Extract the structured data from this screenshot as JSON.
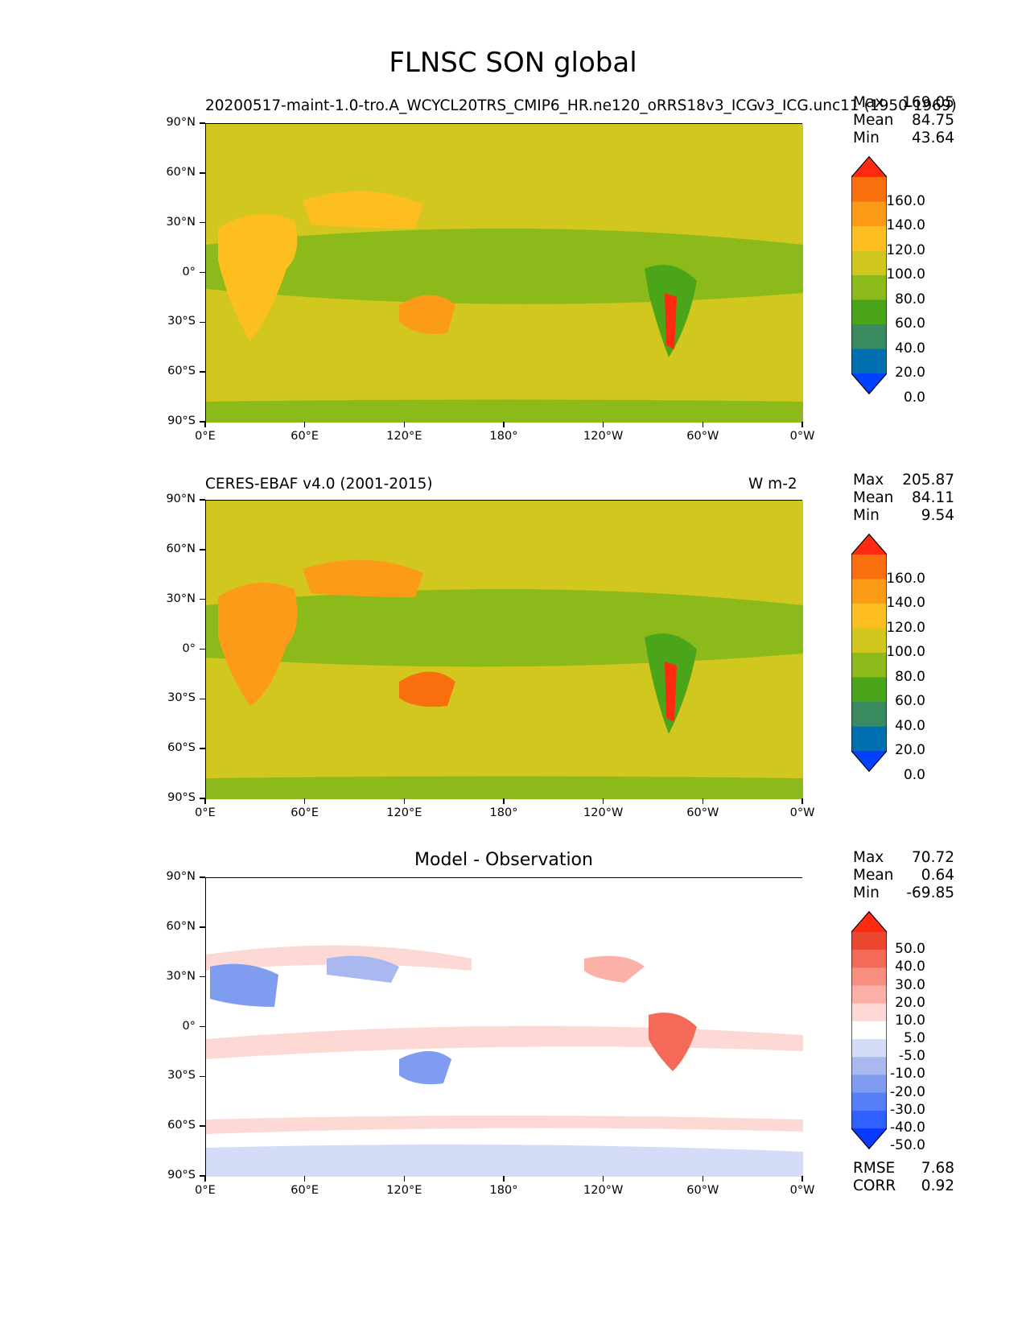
{
  "figure": {
    "title": "FLNSC SON global"
  },
  "panels": [
    {
      "id": "model",
      "title_left": "20200517-maint-1.0-tro.A_WCYCL20TRS_CMIP6_HR.ne120_oRRS18v3_ICG",
      "title_right": "v3_ICG.unc11 (1950-1969)",
      "stats": {
        "max_label": "Max",
        "max": "169.05",
        "mean_label": "Mean",
        "mean": "84.75",
        "min_label": "Min",
        "min": "43.64"
      },
      "colorbar": {
        "colors": [
          "#0040ff",
          "#0070b0",
          "#3a8a60",
          "#4aa51a",
          "#8cba1a",
          "#d2c71e",
          "#fdbf20",
          "#fc9b18",
          "#f96f0e",
          "#ff2a10"
        ],
        "labels": [
          "160.0",
          "140.0",
          "120.0",
          "100.0",
          "80.0",
          "60.0",
          "40.0",
          "20.0",
          "0.0"
        ]
      }
    },
    {
      "id": "obs",
      "title_left": "CERES-EBAF v4.0 (2001-2015)",
      "title_right": "W m-2",
      "stats": {
        "max_label": "Max",
        "max": "205.87",
        "mean_label": "Mean",
        "mean": "84.11",
        "min_label": "Min",
        "min": "9.54"
      },
      "colorbar": {
        "colors": [
          "#0040ff",
          "#0070b0",
          "#3a8a60",
          "#4aa51a",
          "#8cba1a",
          "#d2c71e",
          "#fdbf20",
          "#fc9b18",
          "#f96f0e",
          "#ff2a10"
        ],
        "labels": [
          "160.0",
          "140.0",
          "120.0",
          "100.0",
          "80.0",
          "60.0",
          "40.0",
          "20.0",
          "0.0"
        ]
      }
    },
    {
      "id": "diff",
      "title_center": "Model - Observation",
      "stats": {
        "max_label": "Max",
        "max": "70.72",
        "mean_label": "Mean",
        "mean": "0.64",
        "min_label": "Min",
        "min": "-69.85"
      },
      "extra_stats": {
        "rmse_label": "RMSE",
        "rmse": "7.68",
        "corr_label": "CORR",
        "corr": "0.92"
      },
      "colorbar": {
        "colors": [
          "#0a3aff",
          "#3060ff",
          "#5580f8",
          "#7f9cf0",
          "#a9b8ee",
          "#d4dcf8",
          "#ffffff",
          "#fdd9d5",
          "#fbb0a8",
          "#f8907f",
          "#f36b58",
          "#ea4630",
          "#ff2a10"
        ],
        "labels": [
          "50.0",
          "40.0",
          "30.0",
          "20.0",
          "10.0",
          "5.0",
          "-5.0",
          "-10.0",
          "-20.0",
          "-30.0",
          "-40.0",
          "-50.0"
        ]
      }
    }
  ],
  "axes": {
    "yticks": [
      "90°N",
      "60°N",
      "30°N",
      "0°",
      "30°S",
      "60°S",
      "90°S"
    ],
    "xticks": [
      "0°E",
      "60°E",
      "120°E",
      "180°",
      "120°W",
      "60°W",
      "0°W"
    ]
  },
  "chart_data": [
    {
      "type": "heatmap",
      "title": "20200517-maint-1.0-tro.A_WCYCL20TRS_CMIP6_HR.ne120_oRRS18v3_ICG.unc11 (1950-1969)",
      "projection": "PlateCarree, longitude 0°E to 360°",
      "xlim": [
        0,
        360
      ],
      "ylim": [
        -90,
        90
      ],
      "contour_levels": [
        0,
        20,
        40,
        60,
        80,
        100,
        120,
        140,
        160
      ],
      "extend": "both",
      "stats": {
        "max": 169.05,
        "mean": 84.75,
        "min": 43.64
      }
    },
    {
      "type": "heatmap",
      "title": "CERES-EBAF v4.0 (2001-2015)",
      "units": "W m-2",
      "projection": "PlateCarree, longitude 0°E to 360°",
      "xlim": [
        0,
        360
      ],
      "ylim": [
        -90,
        90
      ],
      "contour_levels": [
        0,
        20,
        40,
        60,
        80,
        100,
        120,
        140,
        160
      ],
      "extend": "both",
      "stats": {
        "max": 205.87,
        "mean": 84.11,
        "min": 9.54
      }
    },
    {
      "type": "heatmap",
      "title": "Model - Observation",
      "projection": "PlateCarree, longitude 0°E to 360°",
      "xlim": [
        0,
        360
      ],
      "ylim": [
        -90,
        90
      ],
      "contour_levels": [
        -50,
        -40,
        -30,
        -20,
        -10,
        -5,
        5,
        10,
        20,
        30,
        40,
        50
      ],
      "extend": "both",
      "stats": {
        "max": 70.72,
        "mean": 0.64,
        "min": -69.85,
        "rmse": 7.68,
        "corr": 0.92
      }
    }
  ]
}
